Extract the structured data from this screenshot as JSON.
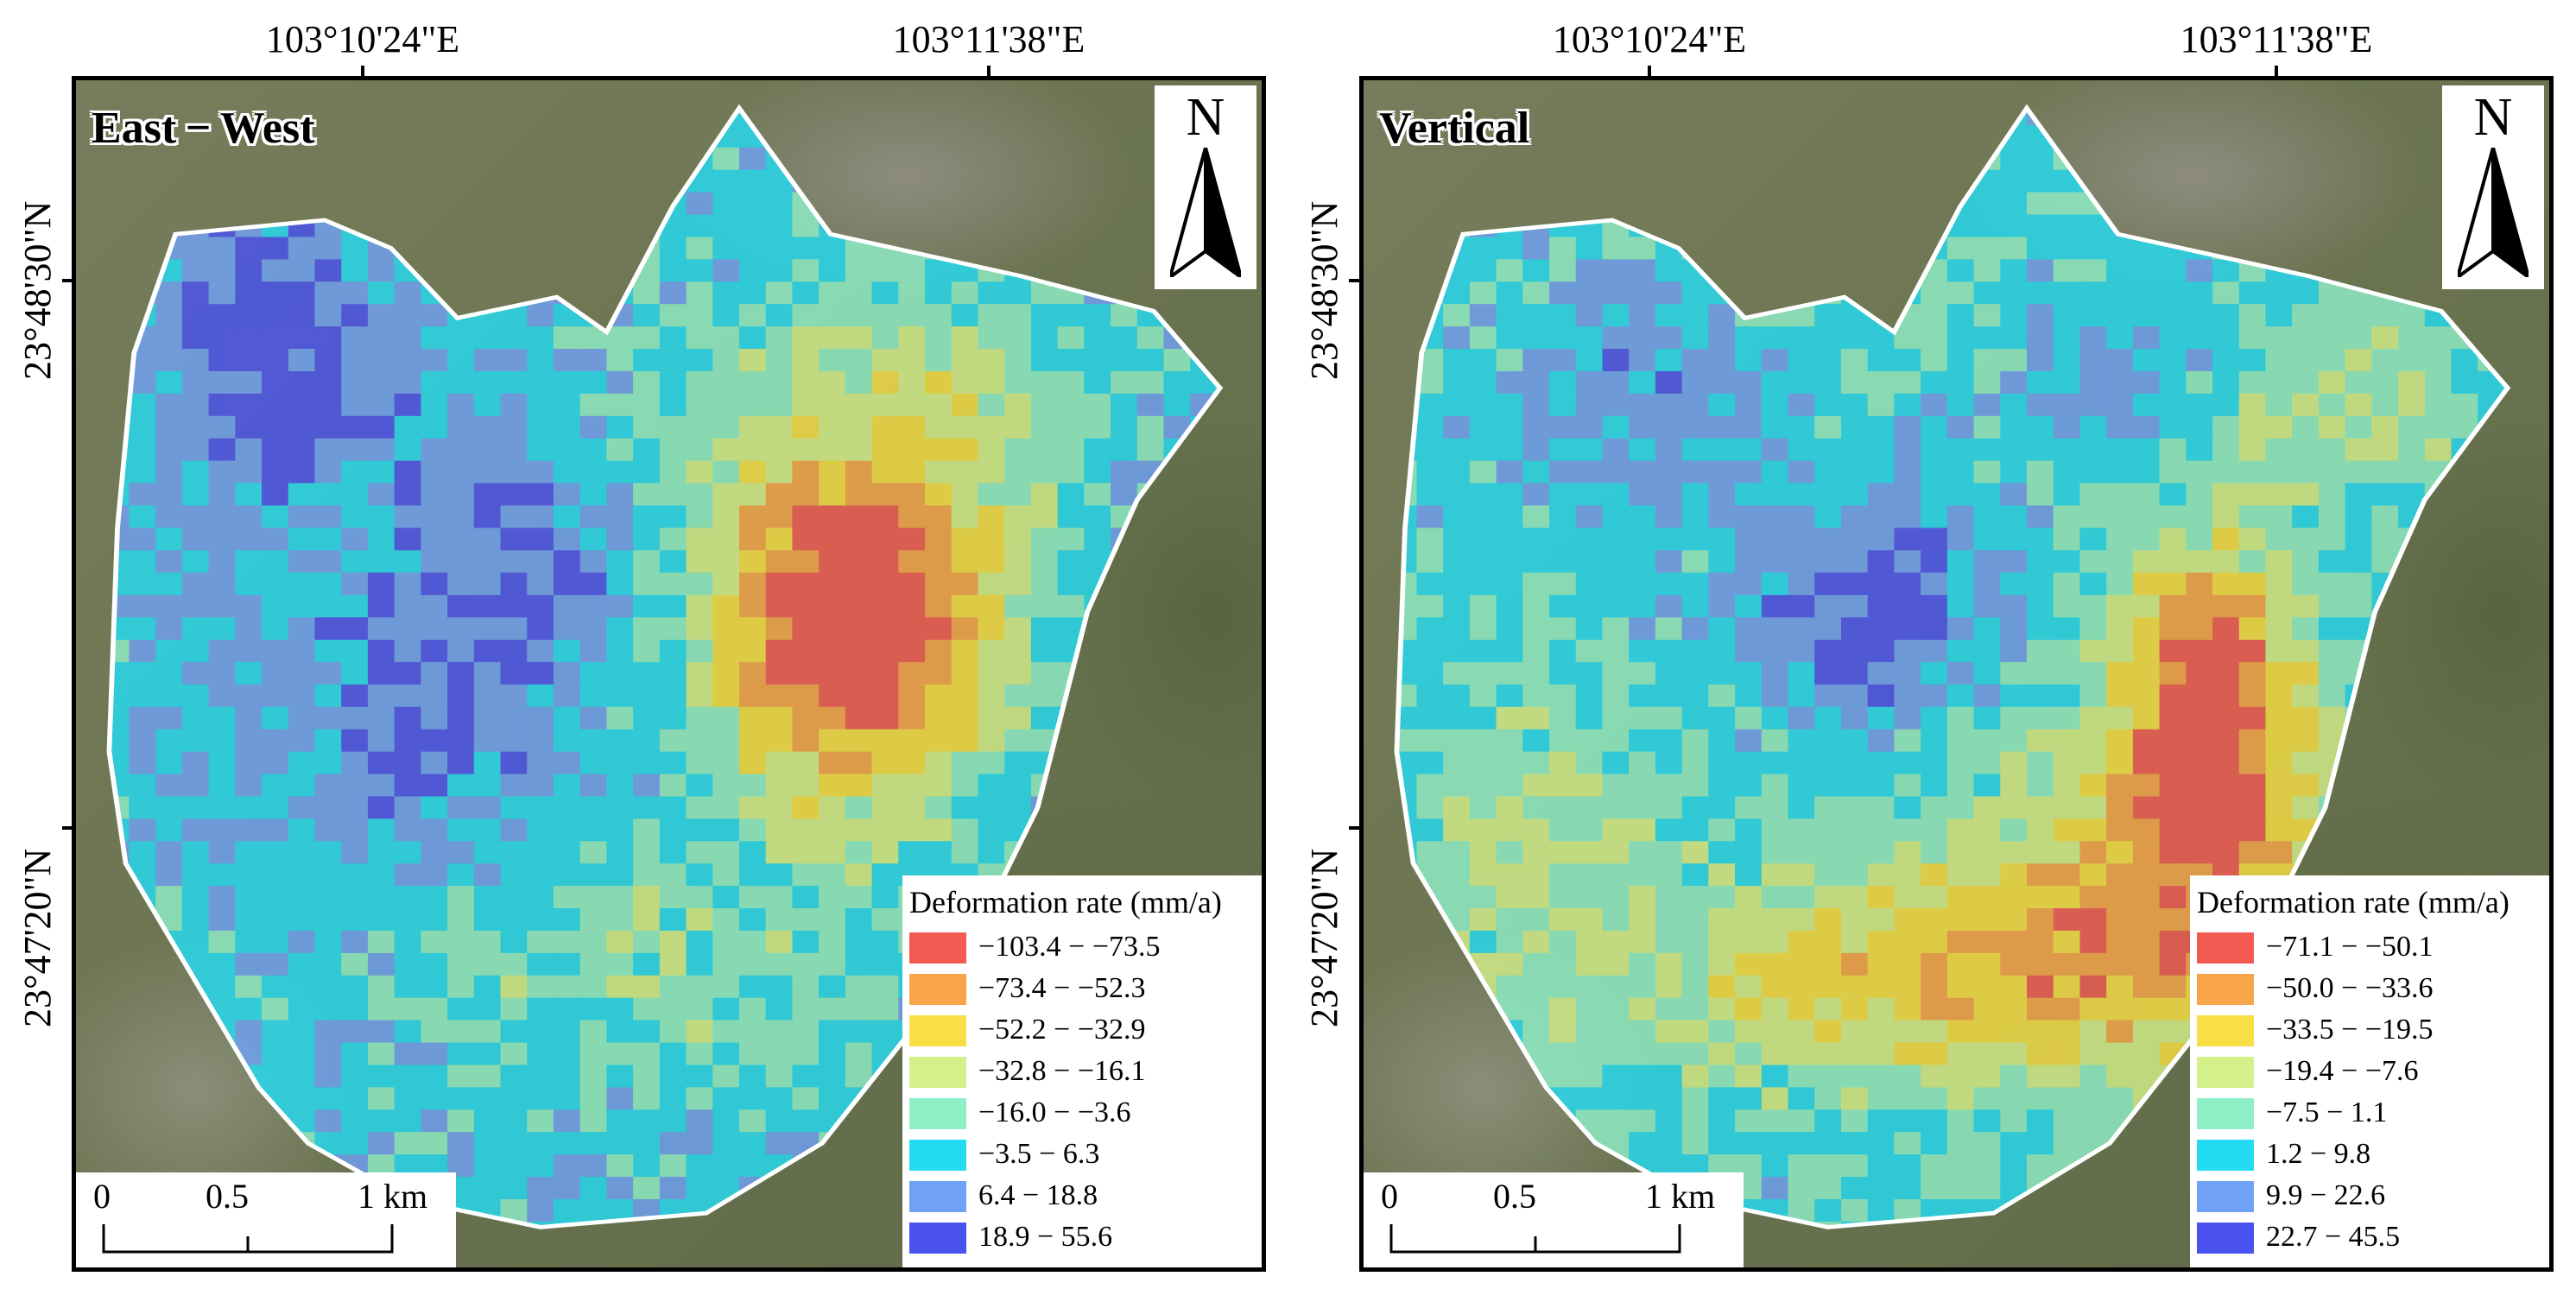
{
  "axes": {
    "longitudes": [
      "103°10'24\"E",
      "103°11'38\"E"
    ],
    "latitudes": [
      "23°48'30\"N",
      "23°47'20\"N"
    ]
  },
  "scalebar": {
    "labels": [
      "0",
      "0.5",
      "1 km"
    ]
  },
  "north_arrow": {
    "letter": "N"
  },
  "palette": [
    "#f25a52",
    "#f7a548",
    "#f7df45",
    "#d4f08a",
    "#8ff0c8",
    "#24dcf2",
    "#6fa2f5",
    "#4a52f0"
  ],
  "panels": [
    {
      "title": "East − West",
      "legend": {
        "title": "Deformation rate (mm/a)",
        "items": [
          {
            "label": "−103.4 − −73.5",
            "color": "#f25a52"
          },
          {
            "label": "−73.4 − −52.3",
            "color": "#f7a548"
          },
          {
            "label": "−52.2 − −32.9",
            "color": "#f7df45"
          },
          {
            "label": "−32.8 − −16.1",
            "color": "#d4f08a"
          },
          {
            "label": "−16.0 − −3.6",
            "color": "#8ff0c8"
          },
          {
            "label": "−3.5 − 6.3",
            "color": "#24dcf2"
          },
          {
            "label": "6.4 − 18.8",
            "color": "#6fa2f5"
          },
          {
            "label": "18.9 − 55.6",
            "color": "#4a52f0"
          }
        ]
      }
    },
    {
      "title": "Vertical",
      "legend": {
        "title": "Deformation rate (mm/a)",
        "items": [
          {
            "label": "−71.1 − −50.1",
            "color": "#f25a52"
          },
          {
            "label": "−50.0 − −33.6",
            "color": "#f7a548"
          },
          {
            "label": "−33.5 − −19.5",
            "color": "#f7df45"
          },
          {
            "label": "−19.4 − −7.6",
            "color": "#d4f08a"
          },
          {
            "label": "−7.5 − 1.1",
            "color": "#8ff0c8"
          },
          {
            "label": "1.2 − 9.8",
            "color": "#24dcf2"
          },
          {
            "label": "9.9 − 22.6",
            "color": "#6fa2f5"
          },
          {
            "label": "22.7 − 45.5",
            "color": "#4a52f0"
          }
        ]
      }
    }
  ]
}
